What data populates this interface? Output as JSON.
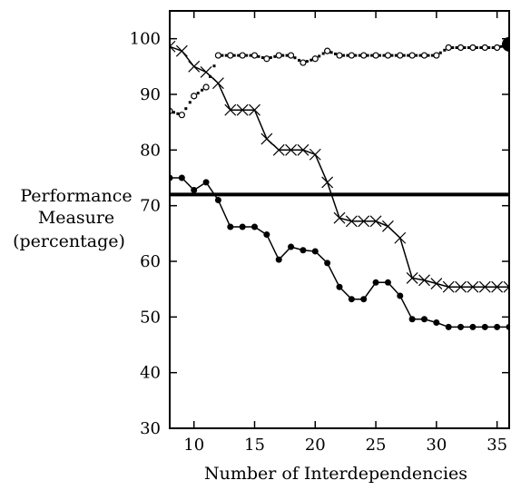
{
  "chart_data": {
    "type": "line",
    "xlabel": "Number of Interdependencies",
    "ylabel": [
      "Performance",
      "Measure",
      "(percentage)"
    ],
    "xlim": [
      8,
      36
    ],
    "ylim": [
      30,
      105
    ],
    "xticks": [
      10,
      15,
      20,
      25,
      30,
      35
    ],
    "yticks": [
      30,
      40,
      50,
      60,
      70,
      80,
      90,
      100
    ],
    "grid": false,
    "legend": "none",
    "reference_line": {
      "y": 72
    },
    "series": [
      {
        "marker": "circle-open",
        "style": "dotted",
        "x": [
          8,
          9,
          10,
          11,
          12,
          13,
          14,
          15,
          16,
          17,
          18,
          19,
          20,
          21,
          22,
          23,
          24,
          25,
          26,
          27,
          28,
          29,
          30,
          31,
          32,
          33,
          34,
          35,
          36
        ],
        "y": [
          87,
          86.3,
          89.7,
          91.3,
          97,
          97,
          97,
          97,
          96.4,
          97,
          97,
          95.7,
          96.4,
          97.8,
          97,
          97,
          97,
          97,
          97,
          97,
          97,
          97,
          97,
          98.4,
          98.4,
          98.4,
          98.4,
          98.4,
          99
        ]
      },
      {
        "marker": "x",
        "style": "solid",
        "x": [
          8,
          9,
          10,
          11,
          12,
          13,
          14,
          15,
          16,
          17,
          18,
          19,
          20,
          21,
          22,
          23,
          24,
          25,
          26,
          27,
          28,
          29,
          30,
          31,
          32,
          33,
          34,
          35,
          36
        ],
        "y": [
          98.6,
          97.8,
          95,
          94,
          92,
          87.2,
          87.2,
          87.2,
          82,
          80,
          80,
          80,
          79.2,
          74.2,
          67.8,
          67.2,
          67.2,
          67.2,
          66.3,
          64.2,
          57,
          56.6,
          56,
          55.4,
          55.4,
          55.4,
          55.4,
          55.4,
          55.4
        ]
      },
      {
        "marker": "circle-filled",
        "style": "solid",
        "x": [
          8,
          9,
          10,
          11,
          12,
          13,
          14,
          15,
          16,
          17,
          18,
          19,
          20,
          21,
          22,
          23,
          24,
          25,
          26,
          27,
          28,
          29,
          30,
          31,
          32,
          33,
          34,
          35,
          36
        ],
        "y": [
          75,
          75,
          72.8,
          74.2,
          71,
          66.2,
          66.2,
          66.2,
          64.8,
          60.3,
          62.6,
          62,
          61.8,
          59.7,
          55.4,
          53.2,
          53.2,
          56.2,
          56.2,
          53.8,
          49.6,
          49.6,
          49,
          48.2,
          48.2,
          48.2,
          48.2,
          48.2,
          48.2
        ]
      }
    ]
  }
}
